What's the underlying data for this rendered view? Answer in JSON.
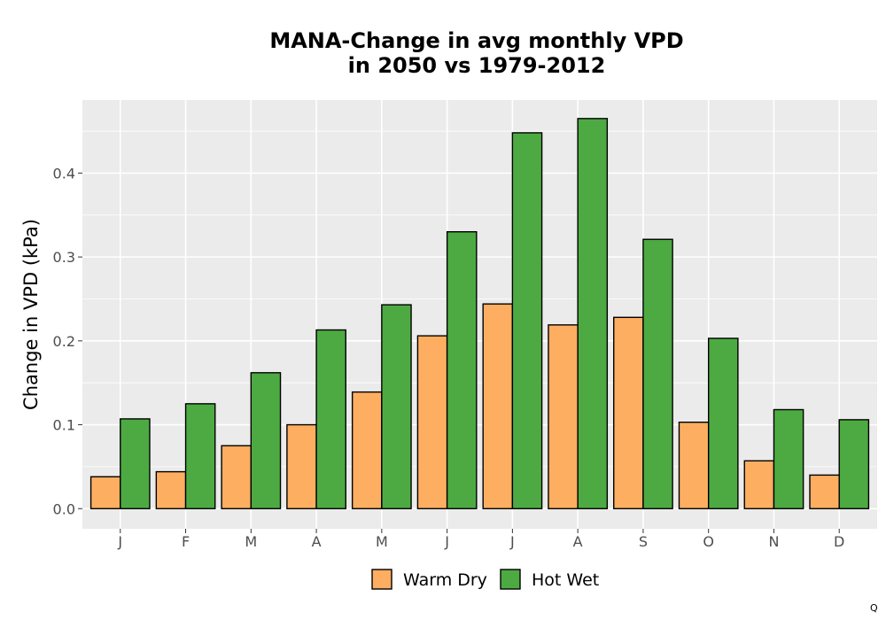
{
  "chart_data": {
    "type": "bar",
    "title_lines": [
      "MANA-Change in avg monthly VPD",
      "in 2050 vs 1979-2012"
    ],
    "ylabel": "Change in VPD (kPa)",
    "xlabel": "",
    "categories": [
      "J",
      "F",
      "M",
      "A",
      "M",
      "J",
      "J",
      "A",
      "S",
      "O",
      "N",
      "D"
    ],
    "series": [
      {
        "name": "Warm Dry",
        "color": "#fdae61",
        "values": [
          0.038,
          0.044,
          0.075,
          0.1,
          0.139,
          0.206,
          0.244,
          0.219,
          0.228,
          0.103,
          0.057,
          0.04
        ]
      },
      {
        "name": "Hot Wet",
        "color": "#4daa42",
        "values": [
          0.107,
          0.125,
          0.162,
          0.213,
          0.243,
          0.33,
          0.448,
          0.465,
          0.321,
          0.203,
          0.118,
          0.106
        ]
      }
    ],
    "y_ticks": [
      0.0,
      0.1,
      0.2,
      0.3,
      0.4
    ],
    "y_tick_labels": [
      "0.0",
      "0.1",
      "0.2",
      "0.3",
      "0.4"
    ],
    "ylim": [
      -0.024,
      0.487
    ],
    "grid": true,
    "panel_background": "#ebebeb",
    "legend_position": "bottom",
    "bar_outline": "#000000"
  },
  "corner_mark": "Q"
}
